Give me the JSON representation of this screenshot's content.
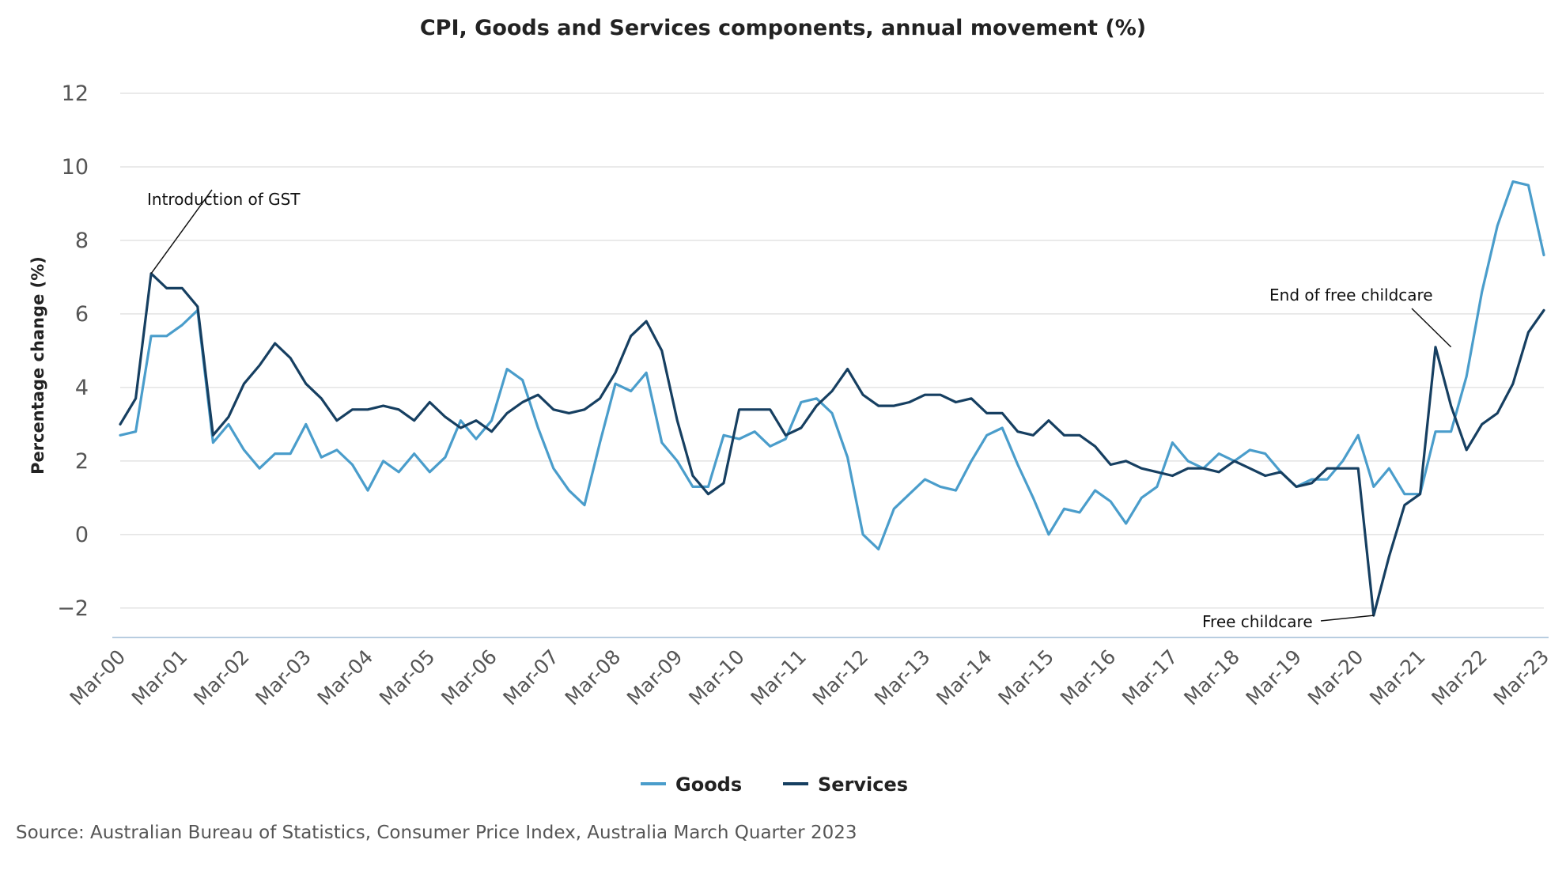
{
  "chart_data": {
    "type": "line",
    "title": "CPI, Goods and Services components, annual movement (%)",
    "ylabel": "Percentage change (%)",
    "xlabel": "",
    "ylim": [
      -2.8,
      12
    ],
    "yticks": [
      12,
      10,
      8,
      6,
      4,
      2,
      0,
      -2
    ],
    "ytick_labels": [
      "12",
      "10",
      "8",
      "6",
      "4",
      "2",
      "0",
      "−2"
    ],
    "grid": true,
    "legend": "bottom-center",
    "x_tick_labels": [
      "Mar-00",
      "Mar-01",
      "Mar-02",
      "Mar-03",
      "Mar-04",
      "Mar-05",
      "Mar-06",
      "Mar-07",
      "Mar-08",
      "Mar-09",
      "Mar-10",
      "Mar-11",
      "Mar-12",
      "Mar-13",
      "Mar-14",
      "Mar-15",
      "Mar-16",
      "Mar-17",
      "Mar-18",
      "Mar-19",
      "Mar-20",
      "Mar-21",
      "Mar-22",
      "Mar-23"
    ],
    "x": [
      "Mar-00",
      "Jun-00",
      "Sep-00",
      "Dec-00",
      "Mar-01",
      "Jun-01",
      "Sep-01",
      "Dec-01",
      "Mar-02",
      "Jun-02",
      "Sep-02",
      "Dec-02",
      "Mar-03",
      "Jun-03",
      "Sep-03",
      "Dec-03",
      "Mar-04",
      "Jun-04",
      "Sep-04",
      "Dec-04",
      "Mar-05",
      "Jun-05",
      "Sep-05",
      "Dec-05",
      "Mar-06",
      "Jun-06",
      "Sep-06",
      "Dec-06",
      "Mar-07",
      "Jun-07",
      "Sep-07",
      "Dec-07",
      "Mar-08",
      "Jun-08",
      "Sep-08",
      "Dec-08",
      "Mar-09",
      "Jun-09",
      "Sep-09",
      "Dec-09",
      "Mar-10",
      "Jun-10",
      "Sep-10",
      "Dec-10",
      "Mar-11",
      "Jun-11",
      "Sep-11",
      "Dec-11",
      "Mar-12",
      "Jun-12",
      "Sep-12",
      "Dec-12",
      "Mar-13",
      "Jun-13",
      "Sep-13",
      "Dec-13",
      "Mar-14",
      "Jun-14",
      "Sep-14",
      "Dec-14",
      "Mar-15",
      "Jun-15",
      "Sep-15",
      "Dec-15",
      "Mar-16",
      "Jun-16",
      "Sep-16",
      "Dec-16",
      "Mar-17",
      "Jun-17",
      "Sep-17",
      "Dec-17",
      "Mar-18",
      "Jun-18",
      "Sep-18",
      "Dec-18",
      "Mar-19",
      "Jun-19",
      "Sep-19",
      "Dec-19",
      "Mar-20",
      "Jun-20",
      "Sep-20",
      "Dec-20",
      "Mar-21",
      "Jun-21",
      "Sep-21",
      "Dec-21",
      "Mar-22",
      "Jun-22",
      "Sep-22",
      "Dec-22",
      "Mar-23"
    ],
    "series": [
      {
        "name": "Goods",
        "color": "#4a9dcb",
        "values": [
          2.7,
          2.8,
          5.4,
          5.4,
          5.7,
          6.1,
          2.5,
          3.0,
          2.3,
          1.8,
          2.2,
          2.2,
          3.0,
          2.1,
          2.3,
          1.9,
          1.2,
          2.0,
          1.7,
          2.2,
          1.7,
          2.1,
          3.1,
          2.6,
          3.1,
          4.5,
          4.2,
          2.9,
          1.8,
          1.2,
          0.8,
          2.5,
          4.1,
          3.9,
          4.4,
          2.5,
          2.0,
          1.3,
          1.3,
          2.7,
          2.6,
          2.8,
          2.4,
          2.6,
          3.6,
          3.7,
          3.3,
          2.1,
          0.0,
          -0.4,
          0.7,
          1.1,
          1.5,
          1.3,
          1.2,
          2.0,
          2.7,
          2.9,
          1.9,
          1.0,
          0.0,
          0.7,
          0.6,
          1.2,
          0.9,
          0.3,
          1.0,
          1.3,
          2.5,
          2.0,
          1.8,
          2.2,
          2.0,
          2.3,
          2.2,
          1.7,
          1.3,
          1.5,
          1.5,
          2.0,
          2.7,
          1.3,
          1.8,
          1.1,
          1.1,
          2.8,
          2.8,
          4.3,
          6.6,
          8.4,
          9.6,
          9.5,
          7.6
        ]
      },
      {
        "name": "Services",
        "color": "#163f61",
        "values": [
          3.0,
          3.7,
          7.1,
          6.7,
          6.7,
          6.2,
          2.7,
          3.2,
          4.1,
          4.6,
          5.2,
          4.8,
          4.1,
          3.7,
          3.1,
          3.4,
          3.4,
          3.5,
          3.4,
          3.1,
          3.6,
          3.2,
          2.9,
          3.1,
          2.8,
          3.3,
          3.6,
          3.8,
          3.4,
          3.3,
          3.4,
          3.7,
          4.4,
          5.4,
          5.8,
          5.0,
          3.1,
          1.6,
          1.1,
          1.4,
          3.4,
          3.4,
          3.4,
          2.7,
          2.9,
          3.5,
          3.9,
          4.5,
          3.8,
          3.5,
          3.5,
          3.6,
          3.8,
          3.8,
          3.6,
          3.7,
          3.3,
          3.3,
          2.8,
          2.7,
          3.1,
          2.7,
          2.7,
          2.4,
          1.9,
          2.0,
          1.8,
          1.7,
          1.6,
          1.8,
          1.8,
          1.7,
          2.0,
          1.8,
          1.6,
          1.7,
          1.3,
          1.4,
          1.8,
          1.8,
          1.8,
          -2.2,
          -0.6,
          0.8,
          1.1,
          5.1,
          3.5,
          2.3,
          3.0,
          3.3,
          4.1,
          5.5,
          6.1
        ]
      }
    ],
    "annotations": [
      {
        "text": "Introduction of GST",
        "x": "Sep-00",
        "y": 7.1
      },
      {
        "text": "End of free childcare",
        "x": "Sep-21",
        "y": 5.1
      },
      {
        "text": "Free childcare",
        "x": "Jun-20",
        "y": -2.2
      }
    ],
    "source": "Source: Australian Bureau of Statistics, Consumer Price Index, Australia March Quarter 2023"
  }
}
